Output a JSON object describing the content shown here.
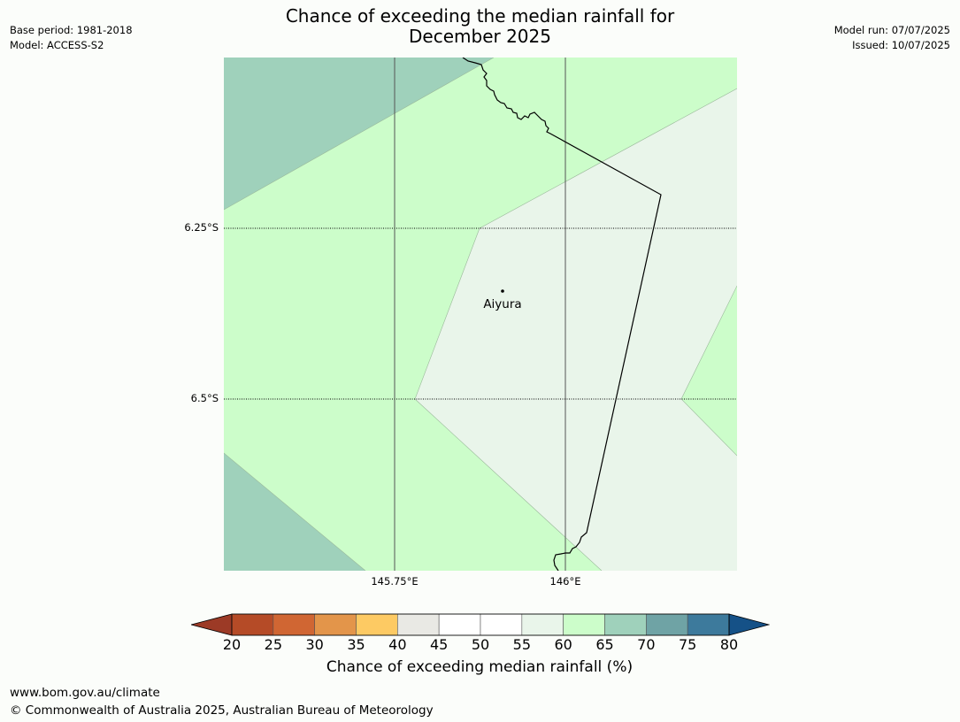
{
  "header": {
    "base_period": "Base period: 1981-2018",
    "model": "Model: ACCESS-S2",
    "title_line1": "Chance of exceeding the median rainfall for",
    "title_line2": "December 2025",
    "model_run": "Model run: 07/07/2025",
    "issued": "Issued: 10/07/2025"
  },
  "map": {
    "latitude_labels": [
      "6.25°S",
      "6.5°S"
    ],
    "longitude_labels": [
      "145.75°E",
      "146°E"
    ],
    "place": "Aiyura",
    "zone_colors": {
      "c55_60": "#e9f5ea",
      "c60_65": "#ccfdca",
      "c65_70": "#9fd1bb"
    },
    "border_color": "#000000",
    "gridline_color": "#555555"
  },
  "colorbar": {
    "title": "Chance of exceeding median rainfall (%)",
    "ticks": [
      "20",
      "25",
      "30",
      "35",
      "40",
      "45",
      "50",
      "55",
      "60",
      "65",
      "70",
      "75",
      "80"
    ],
    "colors": [
      "#9c3a26",
      "#b54b27",
      "#d06633",
      "#e3954a",
      "#fdca63",
      "#e9e9e4",
      "#ffffff",
      "#ffffff",
      "#e9f5ea",
      "#ccfdca",
      "#9fd1bb",
      "#6fa3a5",
      "#3d7a9c",
      "#155187"
    ]
  },
  "footer": {
    "url": "www.bom.gov.au/climate",
    "copyright": "© Commonwealth of Australia 2025, Australian Bureau of Meteorology"
  }
}
